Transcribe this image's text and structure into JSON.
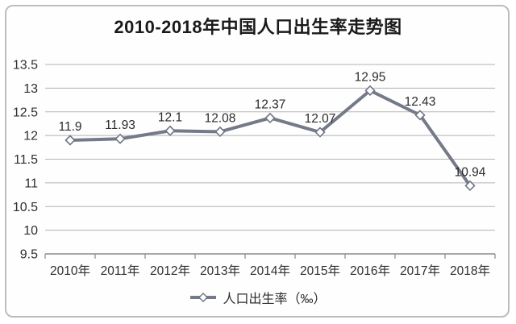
{
  "chart_data": {
    "type": "line",
    "title": "2010-2018年中国人口出生率走势图",
    "categories": [
      "2010年",
      "2011年",
      "2012年",
      "2013年",
      "2014年",
      "2015年",
      "2016年",
      "2017年",
      "2018年"
    ],
    "series": [
      {
        "name": "人口出生率（‰）",
        "values": [
          11.9,
          11.93,
          12.1,
          12.08,
          12.37,
          12.07,
          12.95,
          12.43,
          10.94
        ],
        "point_labels": [
          "11.9",
          "11.93",
          "12.1",
          "12.08",
          "12.37",
          "12.07",
          "12.95",
          "12.43",
          "10.94"
        ]
      }
    ],
    "xlabel": "",
    "ylabel": "",
    "ylim": [
      9.5,
      13.5
    ],
    "y_ticks": [
      "13.5",
      "13",
      "12.5",
      "12",
      "11.5",
      "11",
      "10.5",
      "10",
      "9.5"
    ],
    "grid": true,
    "legend": {
      "position": "bottom",
      "label": "人口出生率（‰）"
    },
    "colors": {
      "line": "#747a88",
      "marker_fill": "#ffffff",
      "marker_stroke": "#6f7584",
      "grid": "#b3b3b3",
      "axis": "#8a8a8a",
      "tick_text": "#2f2f2f",
      "data_label_text": "#2b2b2b",
      "title_text": "#1a1a1a",
      "frame_border": "#bdbdbd"
    }
  }
}
